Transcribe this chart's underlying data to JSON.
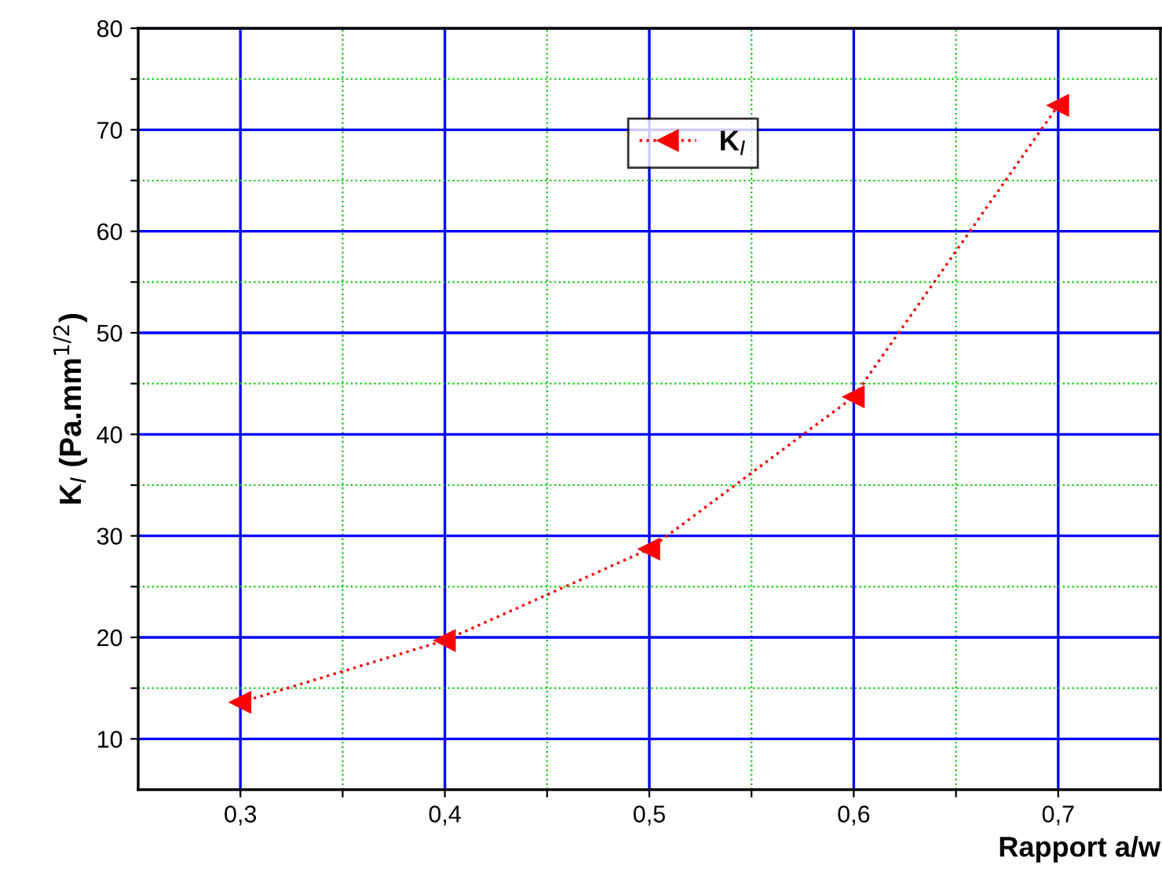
{
  "chart_data": {
    "type": "line",
    "xlabel": "Rapport a/w",
    "ylabel": "K$_{I}$ (Pa.mm$^{1/2}$)",
    "x": [
      0.3,
      0.4,
      0.5,
      0.6,
      0.7
    ],
    "series": [
      {
        "name": "K$_{I}$",
        "color": "#ff0000",
        "values": [
          13.6,
          19.7,
          28.7,
          43.7,
          72.4
        ]
      }
    ],
    "xlim": [
      0.25,
      0.75
    ],
    "ylim": [
      5,
      80
    ],
    "xticks": [
      {
        "value": 0.3,
        "label": "0,3"
      },
      {
        "value": 0.35,
        "label": null
      },
      {
        "value": 0.4,
        "label": "0,4"
      },
      {
        "value": 0.45,
        "label": null
      },
      {
        "value": 0.5,
        "label": "0,5"
      },
      {
        "value": 0.55,
        "label": null
      },
      {
        "value": 0.6,
        "label": "0,6"
      },
      {
        "value": 0.65,
        "label": null
      },
      {
        "value": 0.7,
        "label": "0,7"
      }
    ],
    "yticks": [
      10,
      {
        "value": 15,
        "label": null
      },
      20,
      {
        "value": 25,
        "label": null
      },
      30,
      {
        "value": 35,
        "label": null
      },
      40,
      {
        "value": 45,
        "label": null
      },
      50,
      {
        "value": 55,
        "label": null
      },
      60,
      {
        "value": 65,
        "label": null
      },
      70,
      {
        "value": 75,
        "label": null
      },
      80
    ],
    "grid": true,
    "legend": "top right",
    "marker": "triangle",
    "line_style": "dotted"
  }
}
